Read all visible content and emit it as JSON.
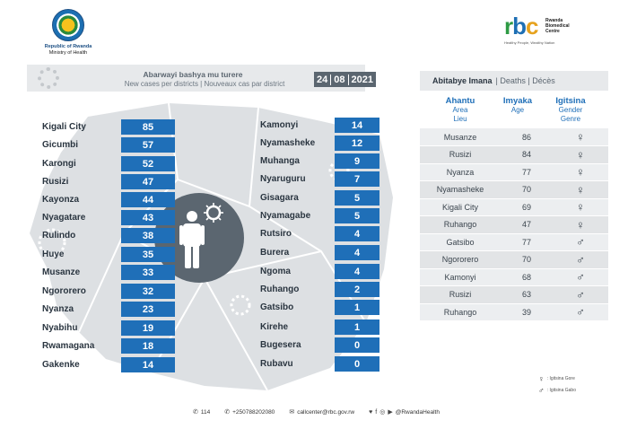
{
  "header": {
    "org_left_line1": "Republic of Rwanda",
    "org_left_line2": "Ministry of Health",
    "rbc_letters": [
      "r",
      "b",
      "c"
    ],
    "rbc_name": [
      "Rwanda",
      "Biomedical",
      "Centre"
    ],
    "rbc_tagline": "Healthy People, Wealthy Nation"
  },
  "banner": {
    "title_kinyarwanda": "Abarwayi bashya mu turere",
    "title_en_fr": "New cases per districts  |  Nouveaux cas par district",
    "date": [
      "24",
      "08",
      "2021"
    ]
  },
  "cases_left": [
    {
      "district": "Kigali City",
      "count": "85"
    },
    {
      "district": "Gicumbi",
      "count": "57"
    },
    {
      "district": "Karongi",
      "count": "52"
    },
    {
      "district": "Rusizi",
      "count": "47"
    },
    {
      "district": "Kayonza",
      "count": "44"
    },
    {
      "district": "Nyagatare",
      "count": "43"
    },
    {
      "district": "Rulindo",
      "count": "38"
    },
    {
      "district": "Huye",
      "count": "35"
    },
    {
      "district": "Musanze",
      "count": "33"
    },
    {
      "district": "Ngororero",
      "count": "32"
    },
    {
      "district": "Nyanza",
      "count": "23"
    },
    {
      "district": "Nyabihu",
      "count": "19"
    },
    {
      "district": "Rwamagana",
      "count": "18"
    },
    {
      "district": "Gakenke",
      "count": "14"
    }
  ],
  "cases_right": [
    {
      "district": "Kamonyi",
      "count": "14"
    },
    {
      "district": "Nyamasheke",
      "count": "12"
    },
    {
      "district": "Muhanga",
      "count": "9"
    },
    {
      "district": "Nyaruguru",
      "count": "7"
    },
    {
      "district": "Gisagara",
      "count": "5"
    },
    {
      "district": "Nyamagabe",
      "count": "5"
    },
    {
      "district": "Rutsiro",
      "count": "4"
    },
    {
      "district": "Burera",
      "count": "4"
    },
    {
      "district": "Ngoma",
      "count": "4"
    },
    {
      "district": "Ruhango",
      "count": "2"
    },
    {
      "district": "Gatsibo",
      "count": "1"
    },
    {
      "district": "Kirehe",
      "count": "1"
    },
    {
      "district": "Bugesera",
      "count": "0"
    },
    {
      "district": "Rubavu",
      "count": "0"
    }
  ],
  "deaths": {
    "title": "Abitabye Imana",
    "title_en_fr": "|  Deaths  |  Décès",
    "columns": {
      "area": {
        "label": "Ahantu",
        "en": "Area",
        "fr": "Lieu"
      },
      "age": {
        "label": "Imyaka",
        "en": "Age",
        "fr": "Age"
      },
      "gender": {
        "label": "Igitsina",
        "en": "Gender",
        "fr": "Genre"
      }
    },
    "rows": [
      {
        "area": "Musanze",
        "age": "86",
        "gender": "♀"
      },
      {
        "area": "Rusizi",
        "age": "84",
        "gender": "♀"
      },
      {
        "area": "Nyanza",
        "age": "77",
        "gender": "♀"
      },
      {
        "area": "Nyamasheke",
        "age": "70",
        "gender": "♀"
      },
      {
        "area": "Kigali City",
        "age": "69",
        "gender": "♀"
      },
      {
        "area": "Ruhango",
        "age": "47",
        "gender": "♀"
      },
      {
        "area": "Gatsibo",
        "age": "77",
        "gender": "♂"
      },
      {
        "area": "Ngororero",
        "age": "70",
        "gender": "♂"
      },
      {
        "area": "Kamonyi",
        "age": "68",
        "gender": "♂"
      },
      {
        "area": "Rusizi",
        "age": "63",
        "gender": "♂"
      },
      {
        "area": "Ruhango",
        "age": "39",
        "gender": "♂"
      }
    ],
    "legend": [
      {
        "symbol": "♀",
        "text": ": Igitsina Gore"
      },
      {
        "symbol": "♂",
        "text": ": Igitsina Gabo"
      }
    ]
  },
  "footer": {
    "hotline": "114",
    "phone": "+250788202080",
    "email": "callcenter@rbc.gov.rw",
    "social": "@RwandaHealth"
  },
  "colors": {
    "accent_blue": "#1f6fb8",
    "banner_grey": "#e7e9eb",
    "dark_grey": "#5b6670"
  }
}
